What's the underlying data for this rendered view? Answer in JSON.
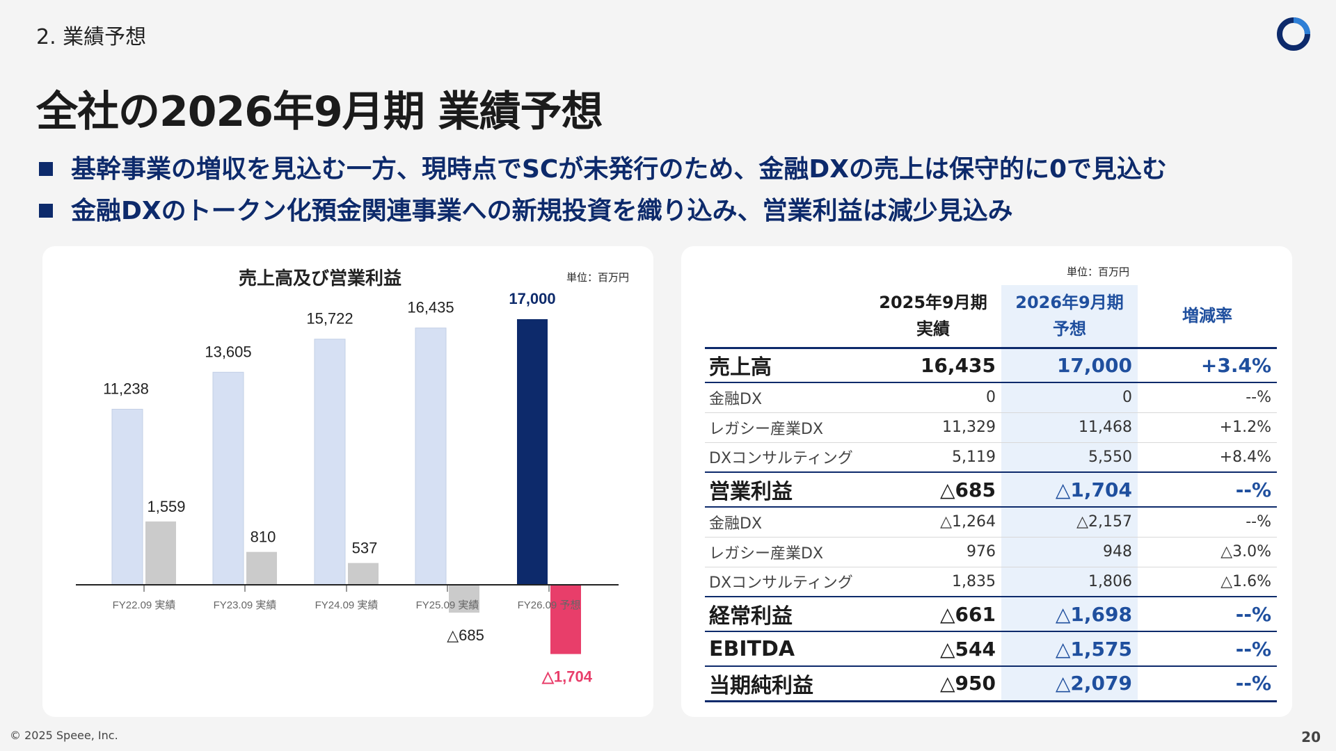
{
  "section_label": "2. 業績予想",
  "page_title": "全社の2026年9月期 業績予想",
  "bullets": [
    "基幹事業の増収を見込む一方、現時点でSCが未発行のため、金融DXの売上は保守的に0で見込む",
    "金融DXのトークン化預金関連事業への新規投資を織り込み、営業利益は減少見込み"
  ],
  "chart_panel": {
    "title": "売上高及び営業利益",
    "unit": "単位：百万円"
  },
  "chart_data": {
    "type": "bar",
    "title": "売上高及び営業利益",
    "categories": [
      "FY22.09 実績",
      "FY23.09 実績",
      "FY24.09 実績",
      "FY25.09 実績",
      "FY26.09 予想"
    ],
    "series": [
      {
        "name": "",
        "values": [
          11238,
          13605,
          15722,
          16435,
          17000
        ],
        "labels": [
          "11,238",
          "13,605",
          "15,722",
          "16,435",
          "17,000"
        ]
      },
      {
        "name": "",
        "values": [
          1559,
          810,
          537,
          -685,
          -1704
        ],
        "labels": [
          "1,559",
          "810",
          "537",
          "△685",
          "△1,704"
        ]
      }
    ],
    "colors": {
      "revenue": "#d6e0f3",
      "revenue_forecast": "#0d2a6b",
      "profit": "#cbcbcb",
      "profit_forecast": "#e83e6a"
    }
  },
  "table_panel": {
    "unit": "単位：百万円",
    "headers": {
      "item": "",
      "fy2025": "2025年9月期\n実績",
      "fy2025_l1": "2025年9月期",
      "fy2025_l2": "実績",
      "fy2026_l1": "2026年9月期",
      "fy2026_l2": "予想",
      "rate": "増減率"
    },
    "rows": [
      {
        "name": "売上高",
        "fy2025": "16,435",
        "fy2026": "17,000",
        "rate": "+3.4%"
      },
      {
        "name": "金融DX",
        "fy2025": "0",
        "fy2026": "0",
        "rate": "--%"
      },
      {
        "name": "レガシー産業DX",
        "fy2025": "11,329",
        "fy2026": "11,468",
        "rate": "+1.2%"
      },
      {
        "name": "DXコンサルティング",
        "fy2025": "5,119",
        "fy2026": "5,550",
        "rate": "+8.4%"
      },
      {
        "name": "営業利益",
        "fy2025": "△685",
        "fy2026": "△1,704",
        "rate": "--%"
      },
      {
        "name": "金融DX",
        "fy2025": "△1,264",
        "fy2026": "△2,157",
        "rate": "--%"
      },
      {
        "name": "レガシー産業DX",
        "fy2025": "976",
        "fy2026": "948",
        "rate": "△3.0%"
      },
      {
        "name": "DXコンサルティング",
        "fy2025": "1,835",
        "fy2026": "1,806",
        "rate": "△1.6%"
      },
      {
        "name": "経常利益",
        "fy2025": "△661",
        "fy2026": "△1,698",
        "rate": "--%"
      },
      {
        "name": "EBITDA",
        "fy2025": "△544",
        "fy2026": "△1,575",
        "rate": "--%"
      },
      {
        "name": "当期純利益",
        "fy2025": "△950",
        "fy2026": "△2,079",
        "rate": "--%"
      }
    ]
  },
  "footer": {
    "copyright": "© 2025 Speee, Inc.",
    "page_number": "20"
  },
  "colors": {
    "navy": "#0d2a6b",
    "accent_blue": "#1f4f9e",
    "highlight_col": "#e9f1fb",
    "negative_pink": "#e83e6a"
  }
}
